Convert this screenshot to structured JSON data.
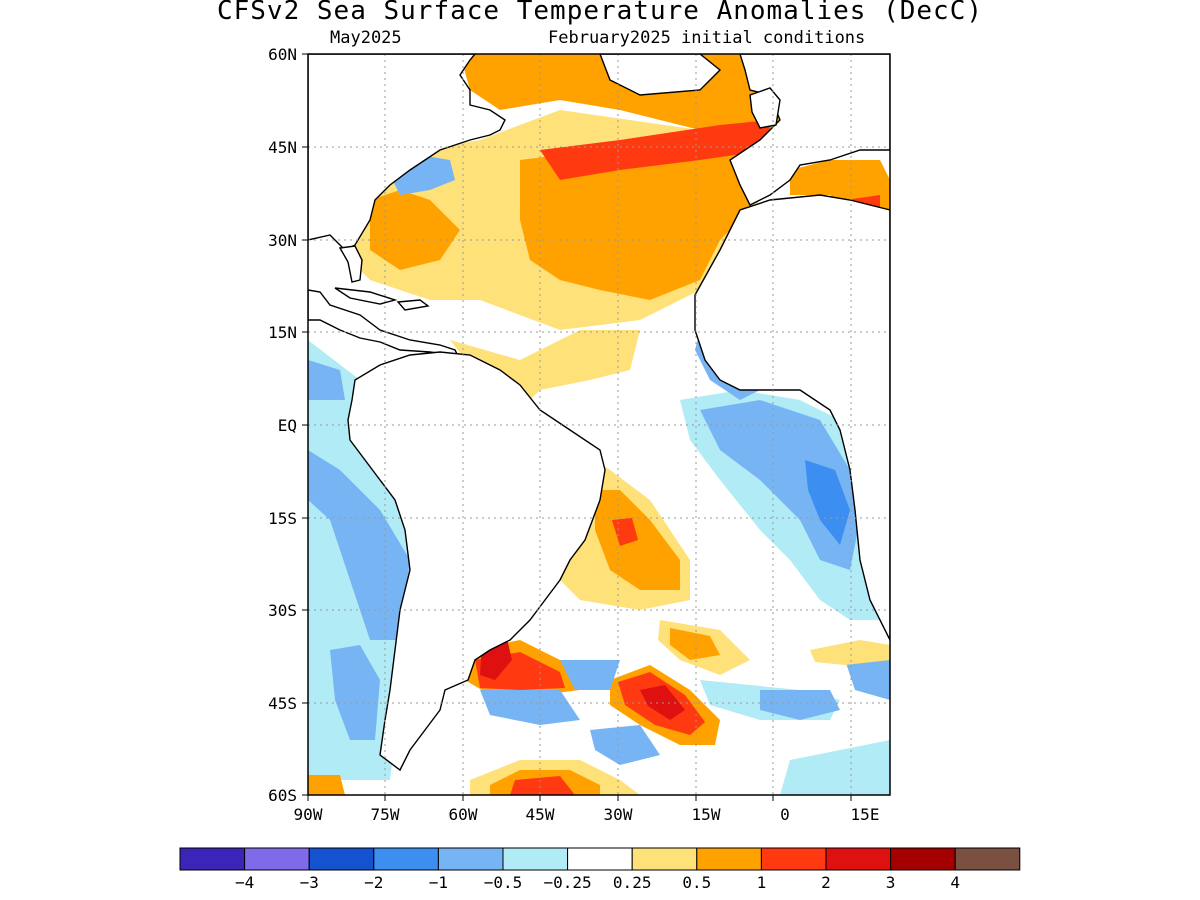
{
  "title": "CFSv2 Sea Surface Temperature Anomalies (DecC)",
  "subtitle_left": "May2025",
  "subtitle_right": "February2025 initial conditions",
  "map": {
    "lat_labels": [
      "60N",
      "45N",
      "30N",
      "15N",
      "EQ",
      "15S",
      "30S",
      "45S",
      "60S"
    ],
    "lon_labels": [
      "90W",
      "75W",
      "60W",
      "45W",
      "30W",
      "15W",
      "0",
      "15E"
    ],
    "lon_range": [
      -90,
      17
    ],
    "lat_range": [
      -60,
      60
    ],
    "grid": "dotted"
  },
  "colorbar": {
    "labels": [
      "−4",
      "−3",
      "−2",
      "−1",
      "−0.5",
      "−0.25",
      "0.25",
      "0.5",
      "1",
      "2",
      "3",
      "4"
    ],
    "colors": [
      "#3a25b8",
      "#7f6bea",
      "#1452cf",
      "#3c8ff0",
      "#77b4f4",
      "#b1ecf6",
      "#ffffff",
      "#ffe17a",
      "#ffa200",
      "#ff3a10",
      "#de1010",
      "#a50000",
      "#7a5040"
    ]
  },
  "anomaly_colors": {
    "light_yellow": "#ffe17a",
    "orange": "#ffa200",
    "red_orange": "#ff3a10",
    "red": "#de1010",
    "dark_red": "#a50000",
    "light_cyan": "#b1ecf6",
    "light_blue": "#77b4f4",
    "blue": "#3c8ff0",
    "dark_blue": "#1452cf"
  }
}
